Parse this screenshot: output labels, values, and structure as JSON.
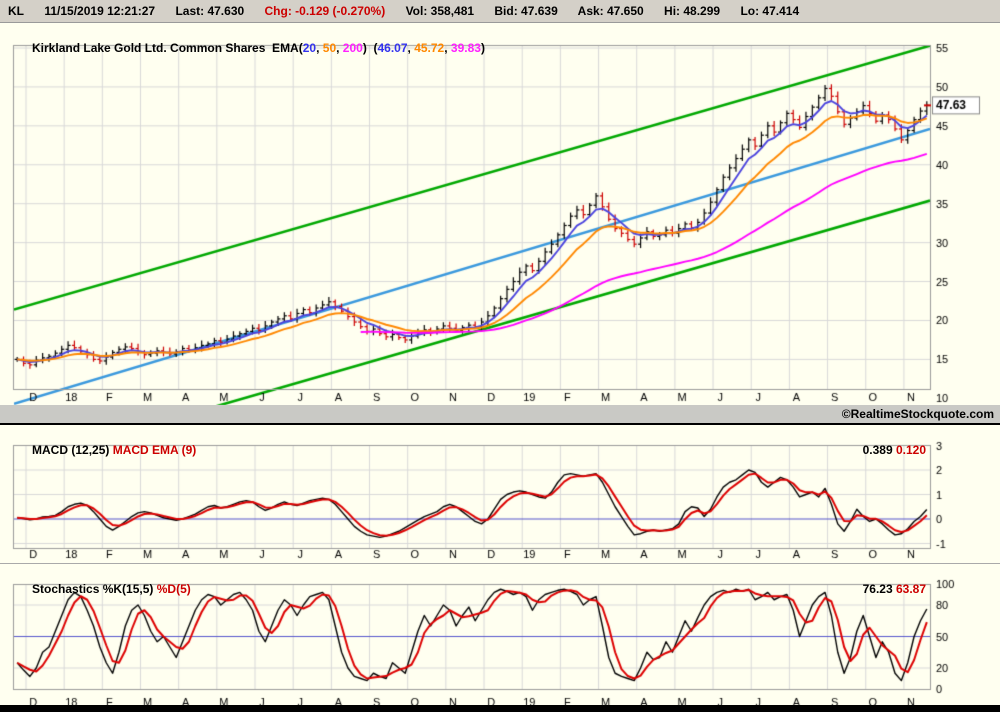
{
  "quote_bar": {
    "symbol": "KL",
    "datetime": "11/15/2019 12:21:27",
    "last": "Last: 47.630",
    "change": "Chg: -0.129 (-0.270%)",
    "volume": "Vol: 358,481",
    "bid": "Bid: 47.639",
    "ask": "Ask: 47.650",
    "high": "Hi: 48.299",
    "low": "Lo: 47.414"
  },
  "price_panel": {
    "title": "Kirkland Lake Gold Ltd. Common Shares",
    "ema_prefix": "  EMA(",
    "ema_p1": "20",
    "ema_sep1": ", ",
    "ema_p2": "50",
    "ema_sep2": ", ",
    "ema_p3": "200",
    "ema_close": ")",
    "val_prefix": "  (",
    "ema_v1": "46.07",
    "val_sep1": ", ",
    "ema_v2": "45.72",
    "val_sep2": ", ",
    "ema_v3": "39.83",
    "val_close": ")",
    "last_price_label": "47.63"
  },
  "macd_panel": {
    "label_main": "MACD (12,25) ",
    "label_signal": "MACD EMA (9)",
    "value_main": "0.389 ",
    "value_signal": "0.120"
  },
  "stoch_panel": {
    "label_main": "Stochastics %K(15,5) ",
    "label_signal": "%D(5)",
    "value_main": "76.23 ",
    "value_signal": "63.87"
  },
  "watermark": "©RealtimeStockquote.com",
  "colors": {
    "up": "#000000",
    "down": "#cc0000",
    "trend_blue": "#3b99dd",
    "channel_green": "#00a800",
    "zero_line": "#5555cc",
    "grid": "#d8d8d8",
    "border": "#9a9a9a",
    "panel_bg": "#fffff0",
    "accent_red": "#cc0000"
  },
  "chart_data": [
    {
      "id": "price",
      "type": "candlestick",
      "title": "Kirkland Lake Gold Ltd. Common Shares",
      "x_labels": [
        "D",
        "18",
        "F",
        "M",
        "A",
        "M",
        "J",
        "J",
        "A",
        "S",
        "O",
        "N",
        "D",
        "19",
        "F",
        "M",
        "A",
        "M",
        "J",
        "J",
        "A",
        "S",
        "O",
        "N"
      ],
      "ylim": [
        10,
        56
      ],
      "y_ticks": [
        55,
        50,
        45,
        40,
        35,
        30,
        25,
        20,
        15,
        10
      ],
      "last_price": 47.63,
      "closes": [
        15.0,
        14.5,
        14.3,
        14.9,
        15.2,
        15.4,
        15.8,
        16.3,
        16.8,
        16.5,
        16.0,
        15.6,
        15.0,
        14.8,
        15.3,
        15.9,
        16.3,
        16.6,
        16.4,
        15.9,
        15.6,
        15.8,
        16.1,
        15.9,
        15.7,
        16.0,
        16.4,
        16.2,
        16.5,
        16.8,
        17.0,
        17.4,
        17.2,
        17.6,
        18.0,
        18.3,
        18.6,
        19.0,
        18.7,
        19.3,
        19.8,
        20.2,
        20.6,
        20.2,
        20.9,
        21.4,
        21.0,
        21.6,
        22.0,
        22.4,
        21.8,
        21.2,
        20.5,
        19.8,
        19.2,
        18.6,
        18.9,
        18.3,
        17.9,
        18.2,
        17.8,
        17.5,
        18.0,
        18.4,
        18.8,
        18.5,
        18.9,
        19.3,
        19.0,
        18.7,
        19.1,
        19.4,
        19.2,
        19.8,
        20.6,
        21.6,
        22.8,
        24.0,
        25.0,
        26.2,
        27.0,
        26.4,
        27.6,
        28.8,
        29.8,
        31.0,
        32.2,
        33.4,
        34.2,
        33.6,
        34.8,
        36.0,
        34.6,
        33.0,
        31.8,
        31.2,
        30.4,
        29.8,
        30.6,
        31.4,
        30.8,
        31.0,
        31.6,
        31.2,
        31.8,
        32.4,
        31.9,
        32.6,
        33.8,
        35.2,
        36.8,
        38.4,
        39.6,
        40.8,
        42.0,
        43.2,
        42.4,
        43.8,
        45.0,
        44.2,
        45.4,
        46.6,
        45.8,
        44.8,
        46.2,
        47.4,
        48.6,
        49.8,
        48.8,
        46.8,
        45.2,
        46.0,
        46.8,
        47.6,
        46.6,
        45.6,
        46.4,
        45.8,
        44.6,
        43.2,
        44.4,
        45.8,
        46.9,
        47.63
      ],
      "overlays": [
        {
          "name": "EMA(20)",
          "last_value": 46.07,
          "color": "#4b44dd",
          "render_period": 5,
          "draw_from": 0
        },
        {
          "name": "EMA(50)",
          "last_value": 45.72,
          "color": "#ff8800",
          "render_period": 12,
          "draw_from": 0
        },
        {
          "name": "EMA(200)",
          "last_value": 39.83,
          "color": "#ff00ff",
          "render_period": 48,
          "draw_from": 54
        }
      ],
      "trendlines": [
        {
          "name": "channel-upper",
          "color": "#00a800",
          "price_at_left": 21.4,
          "price_at_right": 55.3,
          "width": 2.6
        },
        {
          "name": "channel-lower",
          "color": "#00a800",
          "price_at_left": 1.5,
          "price_at_right": 35.4,
          "width": 2.6
        },
        {
          "name": "support-line",
          "color": "#3b99dd",
          "price_at_left": 9.3,
          "price_at_right": 44.6,
          "width": 2.6
        }
      ]
    },
    {
      "id": "macd",
      "type": "line",
      "params": "(12,25)",
      "signal_params": "(9)",
      "ylim": [
        -1.4,
        3.6
      ],
      "y_ticks": [
        3,
        2,
        1,
        0,
        -1
      ],
      "zero_line": 0,
      "last_values": {
        "macd": 0.389,
        "signal": 0.12
      },
      "series": [
        {
          "name": "MACD",
          "color": "#000000",
          "values": [
            0.05,
            0.02,
            -0.03,
            0.0,
            0.08,
            0.1,
            0.15,
            0.3,
            0.5,
            0.6,
            0.65,
            0.55,
            0.3,
            0.0,
            -0.3,
            -0.45,
            -0.3,
            -0.1,
            0.1,
            0.25,
            0.3,
            0.25,
            0.15,
            0.05,
            0.0,
            -0.05,
            0.0,
            0.1,
            0.2,
            0.35,
            0.5,
            0.55,
            0.45,
            0.5,
            0.6,
            0.7,
            0.75,
            0.7,
            0.5,
            0.35,
            0.45,
            0.6,
            0.7,
            0.6,
            0.55,
            0.65,
            0.75,
            0.8,
            0.85,
            0.8,
            0.6,
            0.3,
            0.0,
            -0.3,
            -0.5,
            -0.65,
            -0.7,
            -0.75,
            -0.7,
            -0.6,
            -0.5,
            -0.35,
            -0.2,
            -0.05,
            0.1,
            0.2,
            0.3,
            0.5,
            0.6,
            0.5,
            0.3,
            0.1,
            -0.1,
            -0.2,
            0.0,
            0.4,
            0.8,
            1.0,
            1.1,
            1.15,
            1.1,
            1.0,
            0.9,
            0.85,
            1.1,
            1.5,
            1.8,
            1.85,
            1.8,
            1.75,
            1.8,
            1.85,
            1.5,
            1.0,
            0.5,
            0.1,
            -0.3,
            -0.65,
            -0.6,
            -0.5,
            -0.45,
            -0.5,
            -0.45,
            -0.4,
            -0.2,
            0.3,
            0.5,
            0.45,
            0.1,
            0.4,
            0.9,
            1.3,
            1.5,
            1.6,
            1.8,
            2.0,
            1.9,
            1.5,
            1.3,
            1.5,
            1.7,
            1.6,
            1.3,
            0.9,
            1.0,
            1.1,
            0.9,
            1.25,
            0.6,
            -0.2,
            -0.5,
            -0.1,
            0.4,
            0.1,
            -0.1,
            0.0,
            -0.2,
            -0.45,
            -0.65,
            -0.6,
            -0.4,
            -0.1,
            0.1,
            0.389
          ]
        },
        {
          "name": "MACD EMA",
          "color": "#dd0000",
          "derived_from": "MACD",
          "render_ema": 3
        }
      ]
    },
    {
      "id": "stochastics",
      "type": "line",
      "params": "%K(15,5)",
      "signal_params": "%D(5)",
      "ylim": [
        0,
        100
      ],
      "y_ticks": [
        100,
        80,
        50,
        20,
        0
      ],
      "mid_line": 50,
      "last_values": {
        "k": 76.23,
        "d": 63.87
      },
      "series": [
        {
          "name": "%K",
          "color": "#000000",
          "values": [
            25,
            18,
            12,
            20,
            35,
            40,
            55,
            70,
            85,
            92,
            88,
            75,
            60,
            40,
            25,
            15,
            35,
            60,
            75,
            80,
            70,
            55,
            45,
            50,
            40,
            30,
            45,
            60,
            75,
            85,
            90,
            88,
            80,
            85,
            90,
            92,
            85,
            75,
            55,
            45,
            60,
            75,
            85,
            80,
            70,
            80,
            88,
            90,
            92,
            85,
            60,
            35,
            20,
            12,
            10,
            8,
            15,
            12,
            10,
            25,
            20,
            15,
            35,
            55,
            70,
            60,
            70,
            80,
            75,
            60,
            70,
            78,
            65,
            75,
            85,
            92,
            95,
            93,
            90,
            92,
            88,
            75,
            85,
            90,
            92,
            94,
            95,
            93,
            90,
            80,
            85,
            88,
            60,
            30,
            15,
            12,
            10,
            8,
            20,
            35,
            28,
            30,
            45,
            35,
            50,
            65,
            55,
            68,
            80,
            88,
            92,
            94,
            92,
            95,
            93,
            95,
            85,
            88,
            92,
            85,
            88,
            90,
            75,
            50,
            65,
            80,
            88,
            92,
            70,
            35,
            15,
            30,
            55,
            70,
            50,
            30,
            45,
            35,
            15,
            8,
            25,
            50,
            65,
            76.23
          ]
        },
        {
          "name": "%D",
          "color": "#dd0000",
          "derived_from": "%K",
          "render_sma": 3
        }
      ]
    }
  ]
}
